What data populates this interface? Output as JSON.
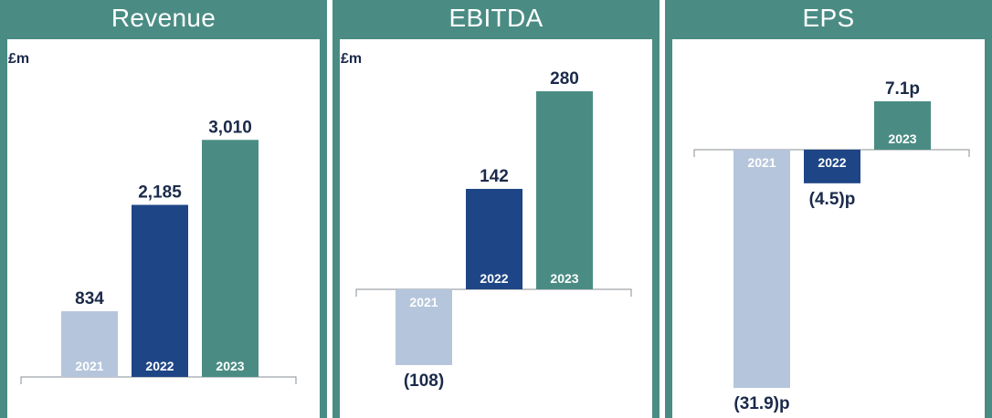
{
  "colors": {
    "header": "#4a8c84",
    "bar_2021": "#b5c5dc",
    "bar_2022": "#1e4585",
    "bar_2023": "#4a8c84",
    "axis": "#8a8f96",
    "label": "#1b2a4a"
  },
  "panels": [
    {
      "title": "Revenue",
      "unit": "£m"
    },
    {
      "title": "EBITDA",
      "unit": "£m"
    },
    {
      "title": "EPS",
      "unit": ""
    }
  ],
  "chart_data": [
    {
      "type": "bar",
      "title": "Revenue",
      "ylabel": "£m",
      "categories": [
        "2021",
        "2022",
        "2023"
      ],
      "values": [
        834,
        2185,
        3010
      ],
      "value_labels": [
        "834",
        "2,185",
        "3,010"
      ],
      "ylim": [
        0,
        3500
      ]
    },
    {
      "type": "bar",
      "title": "EBITDA",
      "ylabel": "£m",
      "categories": [
        "2021",
        "2022",
        "2023"
      ],
      "values": [
        -108,
        142,
        280
      ],
      "value_labels": [
        "(108)",
        "142",
        "280"
      ],
      "ylim": [
        -108,
        280
      ]
    },
    {
      "type": "bar",
      "title": "EPS",
      "ylabel": "",
      "categories": [
        "2021",
        "2022",
        "2023"
      ],
      "values": [
        -31.9,
        -4.5,
        7.1
      ],
      "value_labels": [
        "(31.9)p",
        "(4.5)p",
        "7.1p"
      ],
      "ylim": [
        -31.9,
        7.1
      ]
    }
  ]
}
